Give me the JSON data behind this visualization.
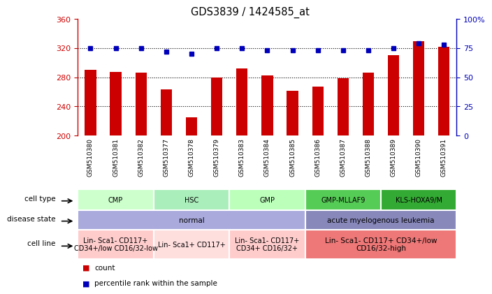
{
  "title": "GDS3839 / 1424585_at",
  "samples": [
    "GSM510380",
    "GSM510381",
    "GSM510382",
    "GSM510377",
    "GSM510378",
    "GSM510379",
    "GSM510383",
    "GSM510384",
    "GSM510385",
    "GSM510386",
    "GSM510387",
    "GSM510388",
    "GSM510389",
    "GSM510390",
    "GSM510391"
  ],
  "counts": [
    290,
    287,
    286,
    263,
    225,
    280,
    292,
    283,
    262,
    267,
    279,
    286,
    310,
    330,
    322
  ],
  "percentile_ranks": [
    75,
    75,
    75,
    72,
    70,
    75,
    75,
    73,
    73,
    73,
    73,
    73,
    75,
    79,
    78
  ],
  "ylim_left": [
    200,
    360
  ],
  "ylim_right": [
    0,
    100
  ],
  "yticks_left": [
    200,
    240,
    280,
    320,
    360
  ],
  "yticks_right": [
    0,
    25,
    50,
    75,
    100
  ],
  "bar_color": "#cc0000",
  "dot_color": "#0000bb",
  "bar_width": 0.45,
  "cell_type_groups": [
    {
      "label": "CMP",
      "start": 0,
      "end": 3,
      "color": "#ccffcc"
    },
    {
      "label": "HSC",
      "start": 3,
      "end": 6,
      "color": "#aaeebb"
    },
    {
      "label": "GMP",
      "start": 6,
      "end": 9,
      "color": "#bbffbb"
    },
    {
      "label": "GMP-MLLAF9",
      "start": 9,
      "end": 12,
      "color": "#55cc55"
    },
    {
      "label": "KLS-HOXA9/M",
      "start": 12,
      "end": 15,
      "color": "#33aa33"
    }
  ],
  "disease_state_groups": [
    {
      "label": "normal",
      "start": 0,
      "end": 9,
      "color": "#aaaadd"
    },
    {
      "label": "acute myelogenous leukemia",
      "start": 9,
      "end": 15,
      "color": "#8888bb"
    }
  ],
  "cell_line_groups": [
    {
      "label": "Lin- Sca1- CD117+\nCD34+/low CD16/32-low",
      "start": 0,
      "end": 3,
      "color": "#ffcccc"
    },
    {
      "label": "Lin- Sca1+ CD117+",
      "start": 3,
      "end": 6,
      "color": "#ffdede"
    },
    {
      "label": "Lin- Sca1- CD117+\nCD34+ CD16/32+",
      "start": 6,
      "end": 9,
      "color": "#ffcccc"
    },
    {
      "label": "Lin- Sca1- CD117+ CD34+/low\nCD16/32-high",
      "start": 9,
      "end": 15,
      "color": "#ee7777"
    }
  ],
  "left_axis_color": "#cc0000",
  "right_axis_color": "#0000bb",
  "grid_dotted_vals": [
    240,
    280,
    320
  ]
}
